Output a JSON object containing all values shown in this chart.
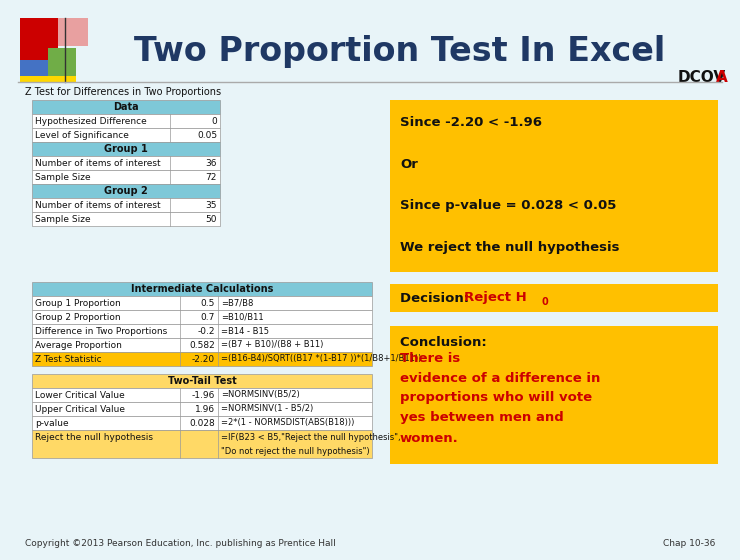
{
  "title": "Two Proportion Test In Excel",
  "dcova_text": "DCOV",
  "dcova_a": "A",
  "subtitle": "Z Test for Differences in Two Proportions",
  "bg_color": "#e8f4f8",
  "title_color": "#1f3864",
  "table_header_color": "#7ec8d8",
  "table_border_color": "#999999",
  "yellow_box_color": "#ffc000",
  "yellow_lite_color": "#ffd966",
  "data_table": {
    "header": "Data",
    "rows": [
      [
        "Hypothesized Difference",
        "0",
        false
      ],
      [
        "Level of Significance",
        "0.05",
        false
      ],
      [
        "Group 1",
        "",
        true
      ],
      [
        "Number of items of interest",
        "36",
        false
      ],
      [
        "Sample Size",
        "72",
        false
      ],
      [
        "Group 2",
        "",
        true
      ],
      [
        "Number of items of interest",
        "35",
        false
      ],
      [
        "Sample Size",
        "50",
        false
      ]
    ]
  },
  "intermediate_table": {
    "header": "Intermediate Calculations",
    "rows": [
      [
        "Group 1 Proportion",
        "0.5",
        "=B7/B8",
        false
      ],
      [
        "Group 2 Proportion",
        "0.7",
        "=B10/B11",
        false
      ],
      [
        "Difference in Two Proportions",
        "-0.2",
        "=B14 - B15",
        false
      ],
      [
        "Average Proportion",
        "0.582",
        "=(B7 + B10)/(B8 + B11)",
        false
      ],
      [
        "Z Test Statistic",
        "-2.20",
        "=(B16-B4)/SQRT((B17 *(1-B17 ))*(1/B8+1/B11))",
        true
      ]
    ]
  },
  "two_tail_table": {
    "header": "Two-Tail Test",
    "rows": [
      [
        "Lower Critical Value",
        "-1.96",
        "=NORMSINV(B5/2)",
        false
      ],
      [
        "Upper Critical Value",
        "1.96",
        "=NORMSINV(1 - B5/2)",
        false
      ],
      [
        "p-value",
        "0.028",
        "=2*(1 - NORMSDIST(ABS(B18)))",
        false
      ],
      [
        "Reject the null hypothesis",
        "",
        "=IF(B23 < B5,\"Reject the null hypothesis\",",
        true
      ]
    ],
    "last_row_cont": "\"Do not reject the null hypothesis\")"
  },
  "yellow_box1_lines": [
    "Since -2.20 < -1.96",
    "",
    "Or",
    "",
    "Since p-value = 0.028 < 0.05",
    "",
    "We reject the null hypothesis"
  ],
  "decision_label": "Decision: ",
  "decision_value": "Reject H",
  "decision_sub": "0",
  "conclusion_label": "Conclusion: ",
  "conclusion_lines": [
    "There is",
    "evidence of a difference in",
    "proportions who will vote",
    "yes between men and",
    "women."
  ],
  "footer_left": "Copyright ©2013 Pearson Education, Inc. publishing as Prentice Hall",
  "footer_right": "Chap 10-36"
}
